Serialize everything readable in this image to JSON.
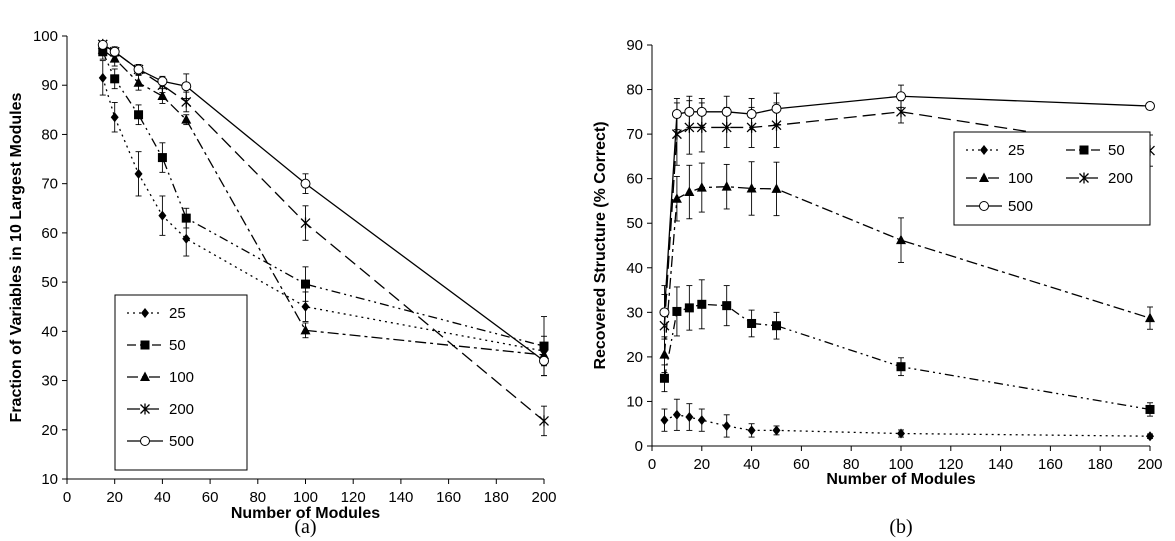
{
  "chart_data": [
    {
      "type": "line",
      "caption": "(a)",
      "xlabel": "Number of Modules",
      "ylabel": "Fraction of Variables in 10 Largest Modules",
      "xlim": [
        0,
        200
      ],
      "ylim": [
        10,
        100
      ],
      "xticks": [
        "0",
        "20",
        "40",
        "60",
        "80",
        "100",
        "120",
        "140",
        "160",
        "180",
        "200"
      ],
      "yticks": [
        "10",
        "20",
        "30",
        "40",
        "50",
        "60",
        "70",
        "80",
        "90",
        "100"
      ],
      "legend_position": "bottom-left",
      "grid": false,
      "series": [
        {
          "name": "25",
          "marker": "diamond",
          "dash": "dotted",
          "x": [
            15,
            20,
            30,
            40,
            50,
            100,
            200
          ],
          "y": [
            91.5,
            83.5,
            72,
            63.5,
            58.8,
            45,
            36
          ],
          "err": [
            3.5,
            3,
            4.5,
            4,
            3.5,
            3,
            3
          ]
        },
        {
          "name": "50",
          "marker": "square",
          "dash": "dash-dot-dot",
          "x": [
            15,
            20,
            30,
            40,
            50,
            100,
            200
          ],
          "y": [
            96.8,
            91.3,
            84,
            75.3,
            63,
            49.6,
            37
          ],
          "err": [
            1.5,
            2,
            2,
            3,
            2,
            3.5,
            6
          ]
        },
        {
          "name": "100",
          "marker": "triangle",
          "dash": "dash-dot",
          "x": [
            15,
            20,
            30,
            40,
            50,
            100,
            200
          ],
          "y": [
            97.2,
            95.4,
            90.5,
            87.8,
            83,
            40.2,
            35.2
          ],
          "err": [
            1,
            1.5,
            1.5,
            1.5,
            1,
            1.5,
            2
          ]
        },
        {
          "name": "200",
          "marker": "star",
          "dash": "long-dash",
          "x": [
            15,
            20,
            30,
            40,
            50,
            100,
            200
          ],
          "y": [
            98.3,
            96.8,
            93.2,
            90,
            86.6,
            62,
            21.8
          ],
          "err": [
            0.5,
            1,
            1,
            1.5,
            2,
            3.5,
            3
          ]
        },
        {
          "name": "500",
          "marker": "circle",
          "dash": "solid",
          "x": [
            15,
            20,
            30,
            40,
            50,
            100,
            200
          ],
          "y": [
            98.2,
            96.8,
            93.2,
            90.8,
            89.8,
            70,
            34
          ],
          "err": [
            0.5,
            0.8,
            1,
            1,
            2.5,
            2,
            3
          ]
        }
      ]
    },
    {
      "type": "line",
      "caption": "(b)",
      "xlabel": "Number of Modules",
      "ylabel": "Recovered Structure (% Correct)",
      "xlim": [
        0,
        200
      ],
      "ylim": [
        0,
        90
      ],
      "xticks": [
        "0",
        "20",
        "40",
        "60",
        "80",
        "100",
        "120",
        "140",
        "160",
        "180",
        "200"
      ],
      "yticks": [
        "0",
        "10",
        "20",
        "30",
        "40",
        "50",
        "60",
        "70",
        "80",
        "90"
      ],
      "legend_position": "right",
      "grid": false,
      "series": [
        {
          "name": "25",
          "marker": "diamond",
          "dash": "dotted",
          "x": [
            5,
            10,
            15,
            20,
            30,
            40,
            50,
            100,
            200
          ],
          "y": [
            5.8,
            7,
            6.5,
            5.8,
            4.5,
            3.5,
            3.5,
            2.8,
            2.2
          ],
          "err": [
            2.5,
            3.5,
            3,
            2.5,
            2.5,
            1.5,
            1,
            0.8,
            0.5
          ]
        },
        {
          "name": "50",
          "marker": "square",
          "dash": "dash-dot-dot",
          "x": [
            5,
            10,
            15,
            20,
            30,
            40,
            50,
            100,
            200
          ],
          "y": [
            15.2,
            30.2,
            31,
            31.8,
            31.5,
            27.5,
            27,
            17.8,
            8.2
          ],
          "err": [
            3,
            5.5,
            5,
            5.5,
            4.5,
            3,
            3,
            2,
            1.5
          ]
        },
        {
          "name": "100",
          "marker": "triangle",
          "dash": "dash-dot",
          "x": [
            5,
            10,
            15,
            20,
            30,
            40,
            50,
            100,
            200
          ],
          "y": [
            20.5,
            55.5,
            57,
            58,
            58.2,
            57.8,
            57.7,
            46.2,
            28.7
          ],
          "err": [
            4,
            5,
            6,
            5.5,
            5,
            6,
            6,
            5,
            2.5
          ]
        },
        {
          "name": "200",
          "marker": "star",
          "dash": "long-dash",
          "x": [
            5,
            10,
            15,
            20,
            30,
            40,
            50,
            100,
            200
          ],
          "y": [
            27,
            70,
            71.5,
            71.5,
            71.5,
            71.5,
            72,
            75,
            66.3
          ],
          "err": [
            7,
            7,
            6,
            5.5,
            4.5,
            4.5,
            5,
            2.5,
            3.5
          ]
        },
        {
          "name": "500",
          "marker": "circle",
          "dash": "solid",
          "x": [
            5,
            10,
            15,
            20,
            30,
            40,
            50,
            100,
            200
          ],
          "y": [
            30,
            74.5,
            75,
            75,
            75,
            74.5,
            75.7,
            78.5,
            76.3
          ],
          "err": [
            6,
            3.5,
            3.5,
            3,
            3.5,
            3.5,
            3.5,
            2.5,
            0.5
          ]
        }
      ]
    }
  ]
}
